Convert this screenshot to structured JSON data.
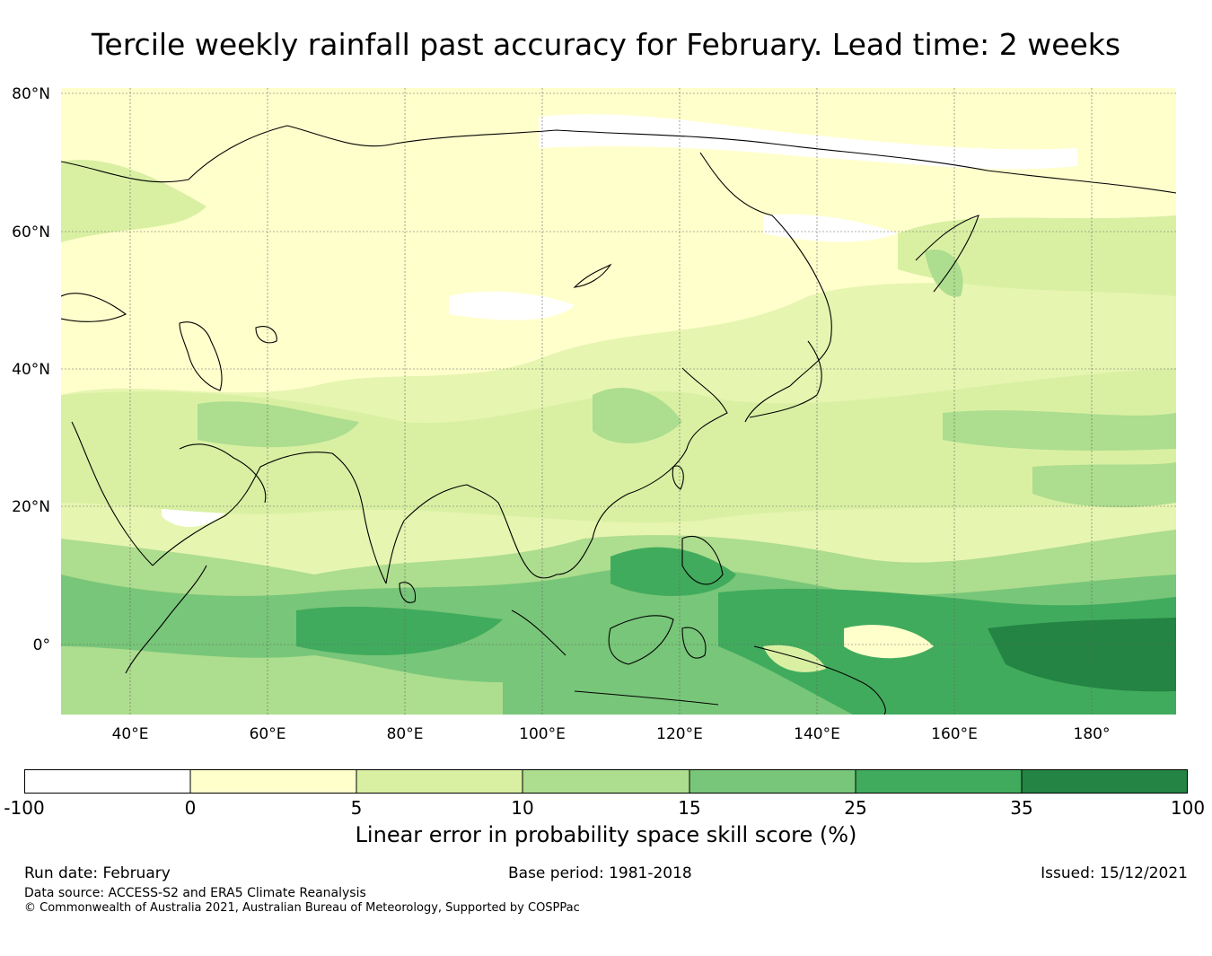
{
  "title": "Tercile weekly rainfall past accuracy for February. Lead time: 2 weeks",
  "map": {
    "lat_labels": [
      "80°N",
      "60°N",
      "40°N",
      "20°N",
      "0°"
    ],
    "lon_labels": [
      "40°E",
      "60°E",
      "80°E",
      "100°E",
      "120°E",
      "140°E",
      "160°E",
      "180°"
    ],
    "land_color": "#ffffcc"
  },
  "colorbar": {
    "ticks": [
      "-100",
      "0",
      "5",
      "10",
      "15",
      "25",
      "35",
      "100"
    ],
    "colors": [
      "#ffffff",
      "#ffffcc",
      "#d9f0a3",
      "#addd8e",
      "#78c679",
      "#41ab5d",
      "#238443"
    ],
    "title": "Linear error in probability space skill score (%)"
  },
  "footer": {
    "run_date": "Run date: February",
    "base_period": "Base period: 1981-2018",
    "issued": "Issued: 15/12/2021",
    "data_source": "Data source: ACCESS-S2 and ERA5 Climate Reanalysis",
    "copyright": "© Commonwealth of Australia 2021, Australian Bureau of Meteorology, Supported by COSPPac"
  }
}
